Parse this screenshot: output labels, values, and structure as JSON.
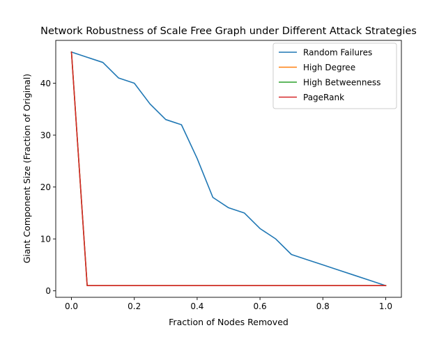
{
  "chart_data": {
    "type": "line",
    "title": "Network Robustness of Scale Free Graph under Different Attack Strategies",
    "xlabel": "Fraction of Nodes Removed",
    "ylabel": "Giant Component Size (Fraction of Original)",
    "xlim": [
      -0.05,
      1.05
    ],
    "ylim": [
      -1.25,
      48.25
    ],
    "xticks": [
      0.0,
      0.2,
      0.4,
      0.6,
      0.8,
      1.0
    ],
    "xtick_labels": [
      "0.0",
      "0.2",
      "0.4",
      "0.6",
      "0.8",
      "1.0"
    ],
    "yticks": [
      0,
      10,
      20,
      30,
      40
    ],
    "ytick_labels": [
      "0",
      "10",
      "20",
      "30",
      "40"
    ],
    "grid": false,
    "legend_position": "top-right",
    "series": [
      {
        "name": "Random Failures",
        "color": "#1f77b4",
        "x": [
          0.0,
          0.05,
          0.1,
          0.15,
          0.2,
          0.25,
          0.3,
          0.35,
          0.4,
          0.45,
          0.5,
          0.55,
          0.6,
          0.65,
          0.7,
          0.75,
          0.8,
          0.85,
          0.9,
          0.95,
          1.0
        ],
        "y": [
          46,
          45,
          44,
          41,
          40,
          36,
          33,
          32,
          25.5,
          18,
          16,
          15,
          12,
          10,
          7,
          6,
          5,
          4,
          3,
          2,
          1
        ]
      },
      {
        "name": "High Degree",
        "color": "#ff7f0e",
        "x": [
          0.0,
          0.05,
          0.1,
          0.15,
          0.2,
          0.25,
          0.3,
          0.35,
          0.4,
          0.45,
          0.5,
          0.55,
          0.6,
          0.65,
          0.7,
          0.75,
          0.8,
          0.85,
          0.9,
          0.95,
          1.0
        ],
        "y": [
          46,
          1,
          1,
          1,
          1,
          1,
          1,
          1,
          1,
          1,
          1,
          1,
          1,
          1,
          1,
          1,
          1,
          1,
          1,
          1,
          1
        ]
      },
      {
        "name": "High Betweenness",
        "color": "#2ca02c",
        "x": [
          0.0,
          0.05,
          0.1,
          0.15,
          0.2,
          0.25,
          0.3,
          0.35,
          0.4,
          0.45,
          0.5,
          0.55,
          0.6,
          0.65,
          0.7,
          0.75,
          0.8,
          0.85,
          0.9,
          0.95,
          1.0
        ],
        "y": [
          46,
          1,
          1,
          1,
          1,
          1,
          1,
          1,
          1,
          1,
          1,
          1,
          1,
          1,
          1,
          1,
          1,
          1,
          1,
          1,
          1
        ]
      },
      {
        "name": "PageRank",
        "color": "#d62728",
        "x": [
          0.0,
          0.05,
          0.1,
          0.15,
          0.2,
          0.25,
          0.3,
          0.35,
          0.4,
          0.45,
          0.5,
          0.55,
          0.6,
          0.65,
          0.7,
          0.75,
          0.8,
          0.85,
          0.9,
          0.95,
          1.0
        ],
        "y": [
          46,
          1,
          1,
          1,
          1,
          1,
          1,
          1,
          1,
          1,
          1,
          1,
          1,
          1,
          1,
          1,
          1,
          1,
          1,
          1,
          1
        ]
      }
    ]
  }
}
